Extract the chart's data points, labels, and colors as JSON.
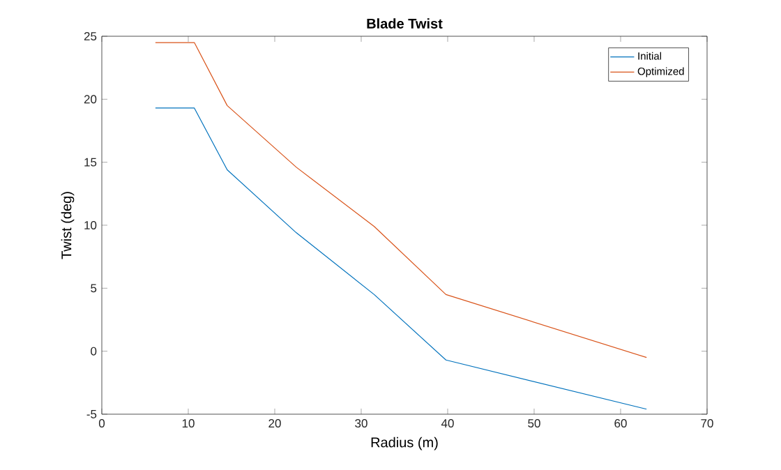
{
  "chart_data": {
    "type": "line",
    "title": "Blade Twist",
    "xlabel": "Radius (m)",
    "ylabel": "Twist (deg)",
    "x": [
      6.2,
      10.7,
      14.5,
      22.5,
      31.5,
      39.8,
      63.0
    ],
    "series": [
      {
        "name": "Initial",
        "color": "#0072bd",
        "values": [
          19.3,
          19.3,
          14.4,
          9.4,
          4.5,
          -0.7,
          -4.6
        ]
      },
      {
        "name": "Optimized",
        "color": "#d95319",
        "values": [
          24.5,
          24.5,
          19.5,
          14.6,
          9.9,
          4.5,
          -0.5
        ]
      }
    ],
    "xlim": [
      0,
      70
    ],
    "xticks": [
      0,
      10,
      20,
      30,
      40,
      50,
      60,
      70
    ],
    "ylim": [
      -5,
      25
    ],
    "yticks": [
      -5,
      0,
      5,
      10,
      15,
      20,
      25
    ],
    "legend": "top right",
    "grid": false,
    "marker": "none",
    "line_style": "solid"
  }
}
